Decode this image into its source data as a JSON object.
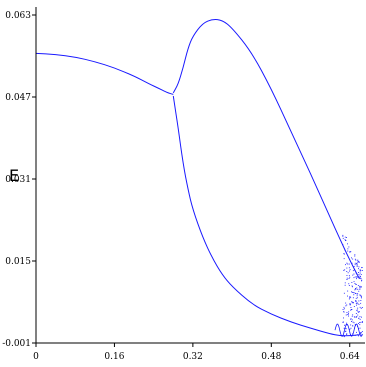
{
  "chart_data": {
    "type": "scatter",
    "title": "",
    "xlabel": "",
    "ylabel": "E",
    "xlim": [
      0,
      0.665
    ],
    "ylim": [
      -0.001,
      0.063
    ],
    "x_ticks": [
      {
        "value": 0,
        "label": "0"
      },
      {
        "value": 0.16,
        "label": "0.16"
      },
      {
        "value": 0.32,
        "label": "0.32"
      },
      {
        "value": 0.48,
        "label": "0.48"
      },
      {
        "value": 0.64,
        "label": "0.64"
      }
    ],
    "y_ticks": [
      {
        "value": 0.063,
        "label": "0.063"
      },
      {
        "value": 0.047,
        "label": "0.047"
      },
      {
        "value": 0.031,
        "label": "0.031"
      },
      {
        "value": 0.015,
        "label": "0.015"
      },
      {
        "value": -0.001,
        "label": "-0.001"
      }
    ],
    "grid": false,
    "colors": {
      "series": "#1a1aff",
      "axis": "#000000"
    },
    "series": [
      {
        "x": [
          0,
          0.04,
          0.08,
          0.12,
          0.16,
          0.2,
          0.23,
          0.25,
          0.265,
          0.27,
          0.28
        ],
        "y": [
          0.0555,
          0.0553,
          0.0548,
          0.0539,
          0.0527,
          0.0511,
          0.0496,
          0.0487,
          0.048,
          0.0478,
          0.0475
        ]
      },
      {
        "x": [
          0.28,
          0.29,
          0.3,
          0.31,
          0.32,
          0.34,
          0.36,
          0.38,
          0.4,
          0.44,
          0.48,
          0.52,
          0.56,
          0.6,
          0.62,
          0.64,
          0.66
        ],
        "y": [
          0.0478,
          0.0495,
          0.0527,
          0.0565,
          0.0589,
          0.0614,
          0.0622,
          0.062,
          0.0605,
          0.0557,
          0.0486,
          0.0403,
          0.0321,
          0.0235,
          0.0193,
          0.0152,
          0.0115
        ]
      },
      {
        "x": [
          0.28,
          0.29,
          0.3,
          0.31,
          0.32,
          0.34,
          0.36,
          0.38,
          0.4,
          0.44,
          0.48,
          0.52,
          0.56,
          0.6,
          0.62,
          0.64,
          0.66
        ],
        "y": [
          0.0472,
          0.041,
          0.034,
          0.029,
          0.025,
          0.0196,
          0.0155,
          0.0123,
          0.01,
          0.0066,
          0.0046,
          0.0031,
          0.0019,
          0.0008,
          0.0004,
          0.0004,
          0.0006
        ]
      }
    ]
  }
}
